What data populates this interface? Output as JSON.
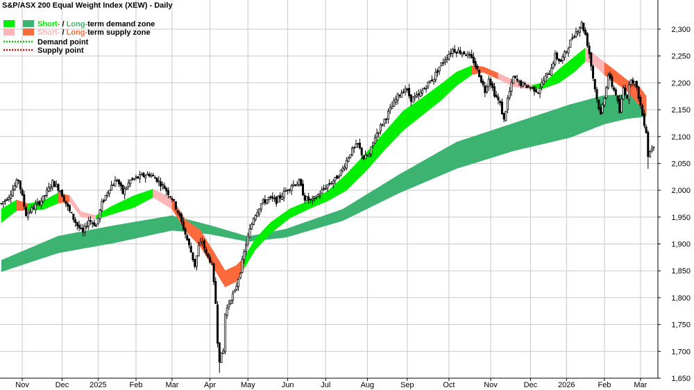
{
  "chart_data": {
    "type": "ohlc",
    "title": "S&P/ASX 200 Equal Weight Index (XEW) - Daily",
    "legend": {
      "placement": "top-left",
      "entries": [
        {
          "key": "demand_zone",
          "prefix": "Short-",
          "sep": " / ",
          "mid": "Long-",
          "suffix": "term demand zone",
          "short_color": "#00ee00",
          "long_color": "#3cb371"
        },
        {
          "key": "supply_zone",
          "prefix": "Short-",
          "sep": " / ",
          "mid": "Long-",
          "suffix": "term supply zone",
          "short_color": "#ffb6b6",
          "long_color": "#ff6a3d"
        },
        {
          "key": "demand_point",
          "label": "Demand point",
          "color": "#00cc00"
        },
        {
          "key": "supply_point",
          "label": "Supply point",
          "color": "#dd0000"
        }
      ]
    },
    "colors": {
      "candle": "#000000",
      "grid": "#c9c9c9",
      "axis": "#000000",
      "short_demand": "#00ee00",
      "long_demand": "#3cb371",
      "short_supply": "#ffb6b6",
      "long_supply": "#ff6a3d"
    },
    "y_axis": {
      "position": "right",
      "ylim": [
        1645,
        2330
      ],
      "ticks": [
        1650,
        1700,
        1750,
        1800,
        1850,
        1900,
        1950,
        2000,
        2050,
        2100,
        2150,
        2200,
        2250,
        2300
      ],
      "tick_labels": [
        "1,650",
        "1,700",
        "1,750",
        "1,800",
        "1,850",
        "1,900",
        "1,950",
        "2,000",
        "2,050",
        "2,100",
        "2,150",
        "2,200",
        "2,250",
        "2,300"
      ]
    },
    "x_axis": {
      "months": [
        {
          "label": "Nov",
          "t": 11
        },
        {
          "label": "Dec",
          "t": 32
        },
        {
          "label": "2025",
          "t": 51
        },
        {
          "label": "Feb",
          "t": 71
        },
        {
          "label": "Mar",
          "t": 90
        },
        {
          "label": "Apr",
          "t": 110
        },
        {
          "label": "May",
          "t": 130
        },
        {
          "label": "Jun",
          "t": 151
        },
        {
          "label": "Jul",
          "t": 171
        },
        {
          "label": "Aug",
          "t": 193
        },
        {
          "label": "Sep",
          "t": 214
        },
        {
          "label": "Oct",
          "t": 236
        },
        {
          "label": "Nov",
          "t": 258
        },
        {
          "label": "Dec",
          "t": 279
        },
        {
          "label": "2026",
          "t": 298
        },
        {
          "label": "Feb",
          "t": 318
        },
        {
          "label": "Mar",
          "t": 337
        }
      ]
    },
    "bars_total": 345,
    "price_path": [
      [
        0,
        1975
      ],
      [
        4,
        1990
      ],
      [
        9,
        2020
      ],
      [
        13,
        1955
      ],
      [
        17,
        1968
      ],
      [
        22,
        1985
      ],
      [
        27,
        2015
      ],
      [
        31,
        2000
      ],
      [
        36,
        1960
      ],
      [
        40,
        1935
      ],
      [
        43,
        1920
      ],
      [
        46,
        1945
      ],
      [
        50,
        1935
      ],
      [
        53,
        1975
      ],
      [
        57,
        2005
      ],
      [
        61,
        2020
      ],
      [
        64,
        1995
      ],
      [
        68,
        2018
      ],
      [
        73,
        2025
      ],
      [
        78,
        2030
      ],
      [
        82,
        2020
      ],
      [
        86,
        2005
      ],
      [
        90,
        1985
      ],
      [
        93,
        1960
      ],
      [
        96,
        1930
      ],
      [
        100,
        1885
      ],
      [
        102,
        1860
      ],
      [
        104,
        1895
      ],
      [
        106,
        1905
      ],
      [
        108,
        1880
      ],
      [
        110,
        1870
      ],
      [
        111,
        1860
      ],
      [
        113,
        1790
      ],
      [
        114,
        1720
      ],
      [
        115,
        1685
      ],
      [
        117,
        1700
      ],
      [
        118,
        1770
      ],
      [
        121,
        1800
      ],
      [
        123,
        1810
      ],
      [
        126,
        1850
      ],
      [
        129,
        1900
      ],
      [
        133,
        1950
      ],
      [
        137,
        1975
      ],
      [
        141,
        1985
      ],
      [
        145,
        1980
      ],
      [
        149,
        1995
      ],
      [
        153,
        2010
      ],
      [
        157,
        2015
      ],
      [
        160,
        1985
      ],
      [
        164,
        1980
      ],
      [
        168,
        1995
      ],
      [
        172,
        2010
      ],
      [
        176,
        2020
      ],
      [
        180,
        2040
      ],
      [
        184,
        2070
      ],
      [
        188,
        2085
      ],
      [
        191,
        2060
      ],
      [
        194,
        2065
      ],
      [
        197,
        2100
      ],
      [
        201,
        2125
      ],
      [
        205,
        2150
      ],
      [
        209,
        2175
      ],
      [
        213,
        2190
      ],
      [
        216,
        2170
      ],
      [
        220,
        2175
      ],
      [
        224,
        2195
      ],
      [
        228,
        2210
      ],
      [
        231,
        2230
      ],
      [
        235,
        2250
      ],
      [
        238,
        2262
      ],
      [
        242,
        2258
      ],
      [
        245,
        2255
      ],
      [
        249,
        2240
      ],
      [
        252,
        2215
      ],
      [
        255,
        2185
      ],
      [
        257,
        2210
      ],
      [
        260,
        2180
      ],
      [
        263,
        2160
      ],
      [
        265,
        2130
      ],
      [
        267,
        2170
      ],
      [
        270,
        2210
      ],
      [
        273,
        2200
      ],
      [
        276,
        2195
      ],
      [
        280,
        2190
      ],
      [
        283,
        2185
      ],
      [
        286,
        2205
      ],
      [
        289,
        2220
      ],
      [
        292,
        2250
      ],
      [
        295,
        2240
      ],
      [
        298,
        2260
      ],
      [
        301,
        2285
      ],
      [
        304,
        2300
      ],
      [
        306,
        2310
      ],
      [
        308,
        2290
      ],
      [
        310,
        2255
      ],
      [
        312,
        2210
      ],
      [
        314,
        2170
      ],
      [
        316,
        2140
      ],
      [
        318,
        2175
      ],
      [
        320,
        2215
      ],
      [
        322,
        2195
      ],
      [
        324,
        2180
      ],
      [
        326,
        2145
      ],
      [
        328,
        2190
      ],
      [
        330,
        2175
      ],
      [
        332,
        2210
      ],
      [
        334,
        2200
      ],
      [
        336,
        2175
      ],
      [
        338,
        2140
      ],
      [
        340,
        2110
      ],
      [
        341,
        2065
      ],
      [
        343,
        2080
      ],
      [
        344,
        2085
      ]
    ],
    "long_demand_zone": [
      {
        "t": 0,
        "top": 1870,
        "bot": 1848
      },
      {
        "t": 30,
        "top": 1915,
        "bot": 1883
      },
      {
        "t": 60,
        "top": 1935,
        "bot": 1902
      },
      {
        "t": 90,
        "top": 1953,
        "bot": 1925
      },
      {
        "t": 110,
        "top": 1935,
        "bot": 1918
      },
      {
        "t": 130,
        "top": 1914,
        "bot": 1904
      },
      {
        "t": 150,
        "top": 1928,
        "bot": 1912
      },
      {
        "t": 180,
        "top": 1965,
        "bot": 1943
      },
      {
        "t": 210,
        "top": 2030,
        "bot": 1995
      },
      {
        "t": 240,
        "top": 2090,
        "bot": 2040
      },
      {
        "t": 270,
        "top": 2125,
        "bot": 2073
      },
      {
        "t": 300,
        "top": 2160,
        "bot": 2098
      },
      {
        "t": 318,
        "top": 2177,
        "bot": 2123
      },
      {
        "t": 330,
        "top": 2178,
        "bot": 2133
      },
      {
        "t": 340,
        "top": 2175,
        "bot": 2137
      }
    ],
    "short_zone": [
      {
        "t": 0,
        "top": 1965,
        "bot": 1940,
        "kind": "demand"
      },
      {
        "t": 8,
        "top": 1982,
        "bot": 1962,
        "kind": "demand"
      },
      {
        "t": 14,
        "top": 1975,
        "bot": 1963,
        "kind": "supply"
      },
      {
        "t": 22,
        "top": 1980,
        "bot": 1964,
        "kind": "demand"
      },
      {
        "t": 30,
        "top": 1995,
        "bot": 1976,
        "kind": "demand"
      },
      {
        "t": 36,
        "top": 1990,
        "bot": 1978,
        "kind": "supply"
      },
      {
        "t": 42,
        "top": 1960,
        "bot": 1950,
        "kind": "supply"
      },
      {
        "t": 50,
        "top": 1953,
        "bot": 1946,
        "kind": "supply"
      },
      {
        "t": 58,
        "top": 1970,
        "bot": 1955,
        "kind": "demand"
      },
      {
        "t": 70,
        "top": 1990,
        "bot": 1968,
        "kind": "demand"
      },
      {
        "t": 80,
        "top": 2002,
        "bot": 1987,
        "kind": "demand"
      },
      {
        "t": 90,
        "top": 1985,
        "bot": 1965,
        "kind": "supply"
      },
      {
        "t": 97,
        "top": 1945,
        "bot": 1925,
        "kind": "supply"
      },
      {
        "t": 105,
        "top": 1925,
        "bot": 1895,
        "kind": "supply"
      },
      {
        "t": 112,
        "top": 1885,
        "bot": 1855,
        "kind": "supply"
      },
      {
        "t": 118,
        "top": 1850,
        "bot": 1820,
        "kind": "supply"
      },
      {
        "t": 124,
        "top": 1860,
        "bot": 1830,
        "kind": "supply"
      },
      {
        "t": 128,
        "top": 1875,
        "bot": 1855,
        "kind": "supply"
      },
      {
        "t": 134,
        "top": 1910,
        "bot": 1890,
        "kind": "demand"
      },
      {
        "t": 142,
        "top": 1940,
        "bot": 1920,
        "kind": "demand"
      },
      {
        "t": 152,
        "top": 1965,
        "bot": 1948,
        "kind": "demand"
      },
      {
        "t": 162,
        "top": 1980,
        "bot": 1965,
        "kind": "demand"
      },
      {
        "t": 172,
        "top": 1998,
        "bot": 1980,
        "kind": "demand"
      },
      {
        "t": 182,
        "top": 2030,
        "bot": 2000,
        "kind": "demand"
      },
      {
        "t": 192,
        "top": 2068,
        "bot": 2035,
        "kind": "demand"
      },
      {
        "t": 202,
        "top": 2108,
        "bot": 2075,
        "kind": "demand"
      },
      {
        "t": 212,
        "top": 2148,
        "bot": 2112,
        "kind": "demand"
      },
      {
        "t": 222,
        "top": 2172,
        "bot": 2140,
        "kind": "demand"
      },
      {
        "t": 232,
        "top": 2198,
        "bot": 2168,
        "kind": "demand"
      },
      {
        "t": 240,
        "top": 2220,
        "bot": 2195,
        "kind": "demand"
      },
      {
        "t": 248,
        "top": 2232,
        "bot": 2215,
        "kind": "demand"
      },
      {
        "t": 254,
        "top": 2230,
        "bot": 2220,
        "kind": "supply"
      },
      {
        "t": 262,
        "top": 2218,
        "bot": 2207,
        "kind": "supply"
      },
      {
        "t": 270,
        "top": 2205,
        "bot": 2193,
        "kind": "supply"
      },
      {
        "t": 280,
        "top": 2196,
        "bot": 2188,
        "kind": "supply"
      },
      {
        "t": 286,
        "top": 2200,
        "bot": 2190,
        "kind": "demand"
      },
      {
        "t": 294,
        "top": 2225,
        "bot": 2200,
        "kind": "demand"
      },
      {
        "t": 302,
        "top": 2248,
        "bot": 2220,
        "kind": "demand"
      },
      {
        "t": 308,
        "top": 2265,
        "bot": 2240,
        "kind": "demand"
      },
      {
        "t": 312,
        "top": 2255,
        "bot": 2235,
        "kind": "supply"
      },
      {
        "t": 318,
        "top": 2238,
        "bot": 2215,
        "kind": "supply"
      },
      {
        "t": 324,
        "top": 2222,
        "bot": 2200,
        "kind": "supply"
      },
      {
        "t": 330,
        "top": 2205,
        "bot": 2185,
        "kind": "supply"
      },
      {
        "t": 336,
        "top": 2195,
        "bot": 2160,
        "kind": "supply"
      },
      {
        "t": 340,
        "top": 2175,
        "bot": 2140,
        "kind": "supply"
      }
    ],
    "grid": true
  }
}
